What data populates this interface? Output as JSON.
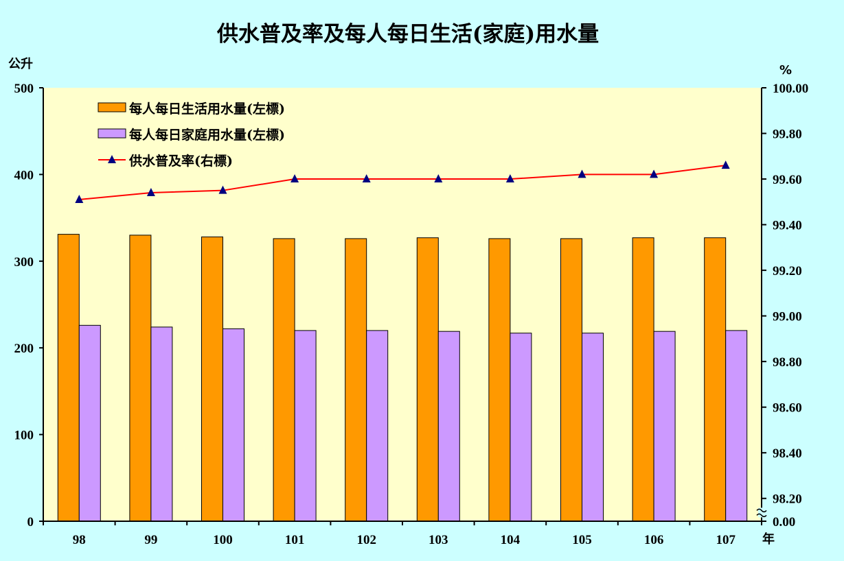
{
  "chart_data": {
    "type": "bar",
    "title": "供水普及率及每人每日生活(家庭)用水量",
    "left_axis_unit": "公升",
    "right_axis_unit": "%",
    "x_axis_unit": "年",
    "categories": [
      "98",
      "99",
      "100",
      "101",
      "102",
      "103",
      "104",
      "105",
      "106",
      "107"
    ],
    "left_ylim": [
      0,
      500
    ],
    "left_yticks": [
      "0",
      "100",
      "200",
      "300",
      "400",
      "500"
    ],
    "right_ylim": [
      98.1,
      100.0
    ],
    "right_yticks": [
      "0.00",
      "98.20",
      "98.40",
      "98.60",
      "98.80",
      "99.00",
      "99.20",
      "99.40",
      "99.60",
      "99.80",
      "100.00"
    ],
    "right_axis_break": true,
    "grid": false,
    "legend_position": "top-left",
    "series": [
      {
        "name": "每人每日生活用水量(左標)",
        "type": "bar",
        "axis": "left",
        "color": "#ff9900",
        "values": [
          331,
          330,
          328,
          326,
          326,
          327,
          326,
          326,
          327,
          327
        ]
      },
      {
        "name": "每人每日家庭用水量(左標)",
        "type": "bar",
        "axis": "left",
        "color": "#cc99ff",
        "values": [
          226,
          224,
          222,
          220,
          220,
          219,
          217,
          217,
          219,
          220
        ]
      },
      {
        "name": "供水普及率(右標)",
        "type": "line",
        "axis": "right",
        "color": "#ff0000",
        "marker_color": "#000080",
        "values": [
          99.51,
          99.54,
          99.55,
          99.6,
          99.6,
          99.6,
          99.6,
          99.62,
          99.62,
          99.66
        ]
      }
    ]
  }
}
